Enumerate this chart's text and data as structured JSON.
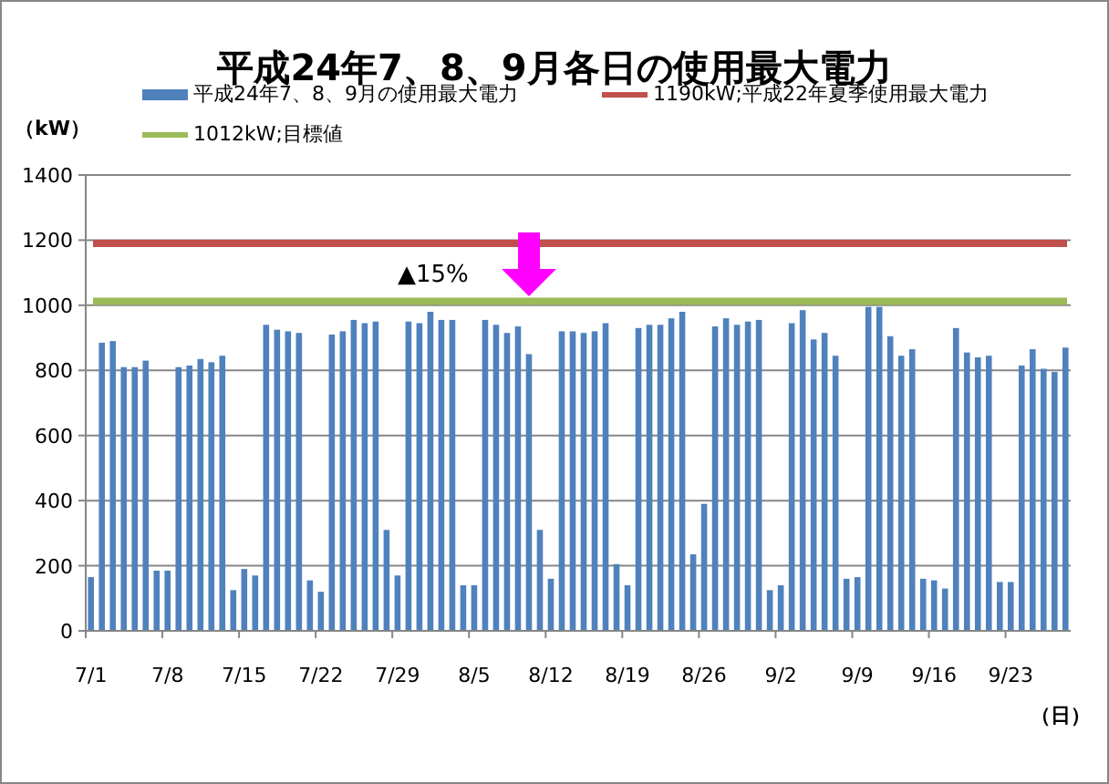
{
  "chart_data": {
    "type": "bar",
    "title": "平成24年7、8、9月各日の使用最大電力",
    "xlabel": "（日）",
    "ylabel": "（kW）",
    "categories": [
      "7/1",
      null,
      null,
      null,
      null,
      null,
      null,
      "7/8",
      null,
      null,
      null,
      null,
      null,
      null,
      "7/15",
      null,
      null,
      null,
      null,
      null,
      null,
      "7/22",
      null,
      null,
      null,
      null,
      null,
      null,
      "7/29",
      null,
      null,
      null,
      null,
      null,
      null,
      "8/5",
      null,
      null,
      null,
      null,
      null,
      null,
      "8/12",
      null,
      null,
      null,
      null,
      null,
      null,
      "8/19",
      null,
      null,
      null,
      null,
      null,
      null,
      "8/26",
      null,
      null,
      null,
      null,
      null,
      null,
      "9/2",
      null,
      null,
      null,
      null,
      null,
      null,
      "9/9",
      null,
      null,
      null,
      null,
      null,
      null,
      "9/16",
      null,
      null,
      null,
      null,
      null,
      null,
      "9/23",
      null,
      null,
      null,
      null,
      null
    ],
    "series": [
      {
        "name": "平成24年7、8、9月の使用最大電力",
        "color": "#4f81bd",
        "values": [
          165,
          885,
          890,
          810,
          810,
          830,
          185,
          185,
          810,
          815,
          835,
          825,
          845,
          125,
          190,
          170,
          940,
          925,
          920,
          915,
          155,
          120,
          910,
          920,
          955,
          945,
          950,
          310,
          170,
          950,
          945,
          980,
          955,
          955,
          140,
          140,
          955,
          940,
          915,
          935,
          850,
          310,
          160,
          920,
          920,
          915,
          920,
          945,
          205,
          140,
          930,
          940,
          940,
          960,
          980,
          235,
          390,
          935,
          960,
          940,
          950,
          955,
          125,
          140,
          945,
          985,
          895,
          915,
          845,
          160,
          165,
          995,
          995,
          905,
          845,
          865,
          160,
          155,
          130,
          930,
          855,
          840,
          845,
          150,
          150,
          815,
          865,
          805,
          795,
          870
        ]
      }
    ],
    "ref_lines": [
      {
        "axis": "y",
        "value": 1190,
        "label": "1190kW;平成22年夏季使用最大電力",
        "color": "#c0504d"
      },
      {
        "axis": "y",
        "value": 1012,
        "label": "1012kW;目標値",
        "color": "#9bbb59"
      }
    ],
    "annotations": [
      "▲15%"
    ],
    "ylim": [
      0,
      1400
    ],
    "yticks": [
      0,
      200,
      400,
      600,
      800,
      1000,
      1200,
      1400
    ],
    "grid": "y",
    "legend": "top"
  }
}
